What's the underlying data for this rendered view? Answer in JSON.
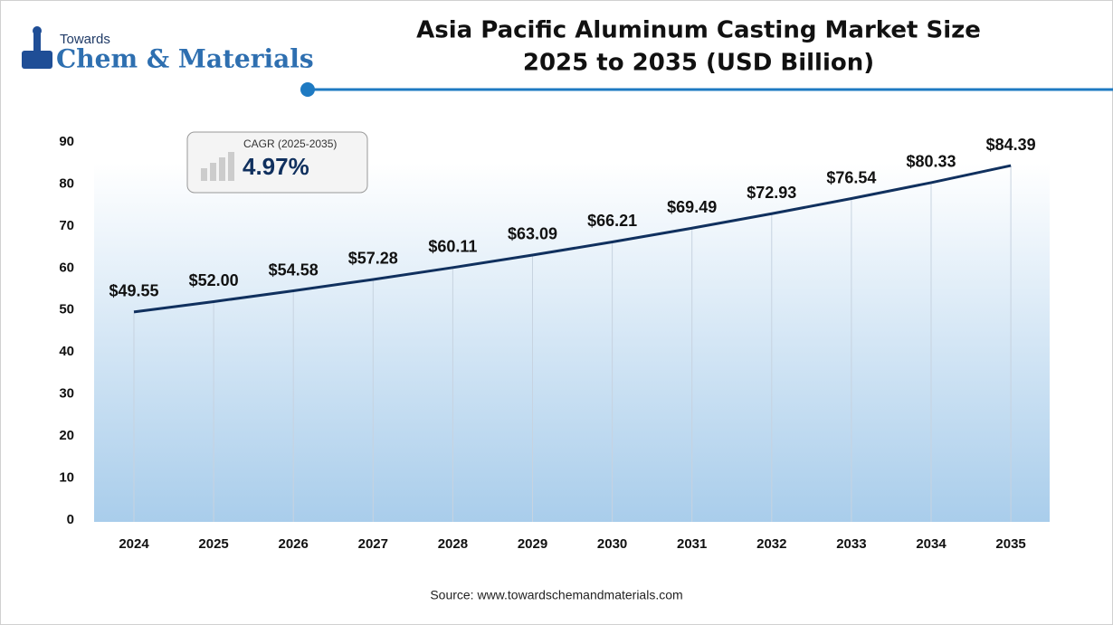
{
  "brand": {
    "small": "Towards",
    "large": "Chem & Materials"
  },
  "cagr": {
    "label": "CAGR (2025-2035)",
    "value": "4.97%"
  },
  "source": "Source: www.towardschemandmaterials.com",
  "chart_data": {
    "type": "line",
    "title": [
      "Asia Pacific Aluminum Casting Market Size",
      "2025 to 2035 (USD Billion)"
    ],
    "categories": [
      "2024",
      "2025",
      "2026",
      "2027",
      "2028",
      "2029",
      "2030",
      "2031",
      "2032",
      "2033",
      "2034",
      "2035"
    ],
    "values": [
      49.55,
      52.0,
      54.58,
      57.28,
      60.11,
      63.09,
      66.21,
      69.49,
      72.93,
      76.54,
      80.33,
      84.39
    ],
    "value_labels": [
      "$49.55",
      "$52.00",
      "$54.58",
      "$57.28",
      "$60.11",
      "$63.09",
      "$66.21",
      "$69.49",
      "$72.93",
      "$76.54",
      "$80.33",
      "$84.39"
    ],
    "color": "#10305e",
    "ylim": [
      0,
      90
    ],
    "yticks": [
      0,
      10,
      20,
      30,
      40,
      50,
      60,
      70,
      80,
      90
    ]
  }
}
